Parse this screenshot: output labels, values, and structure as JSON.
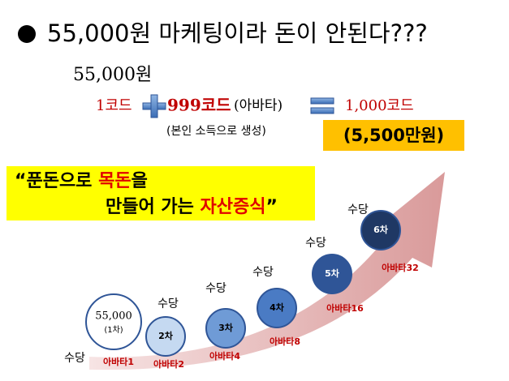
{
  "title": "55,000원 마케팅이라 돈이 안된다???",
  "price": "55,000원",
  "formula": {
    "term1": "1코드",
    "term2": "999코드",
    "term2_note": "(아바타)",
    "result": "1,000코드"
  },
  "note": "(본인 소득으로 생성)",
  "total": "(5,500만원)",
  "slogan": {
    "line1": [
      "“푼돈으로 ",
      "목돈",
      "을"
    ],
    "line2": [
      "만들어 가는 ",
      "자산증식",
      "”"
    ]
  },
  "stages": [
    {
      "circle": "55,000",
      "sub": "(1차)",
      "bonus": "수당",
      "avatar": "아바타1"
    },
    {
      "circle": "2차",
      "bonus": "수당",
      "avatar": "아바타2"
    },
    {
      "circle": "3차",
      "bonus": "수당",
      "avatar": "아바타4"
    },
    {
      "circle": "4차",
      "bonus": "수당",
      "avatar": "아바타8"
    },
    {
      "circle": "5차",
      "bonus": "수당",
      "avatar": "아바타16"
    },
    {
      "circle": "6차",
      "bonus": "수당",
      "avatar": "아바타32"
    }
  ]
}
